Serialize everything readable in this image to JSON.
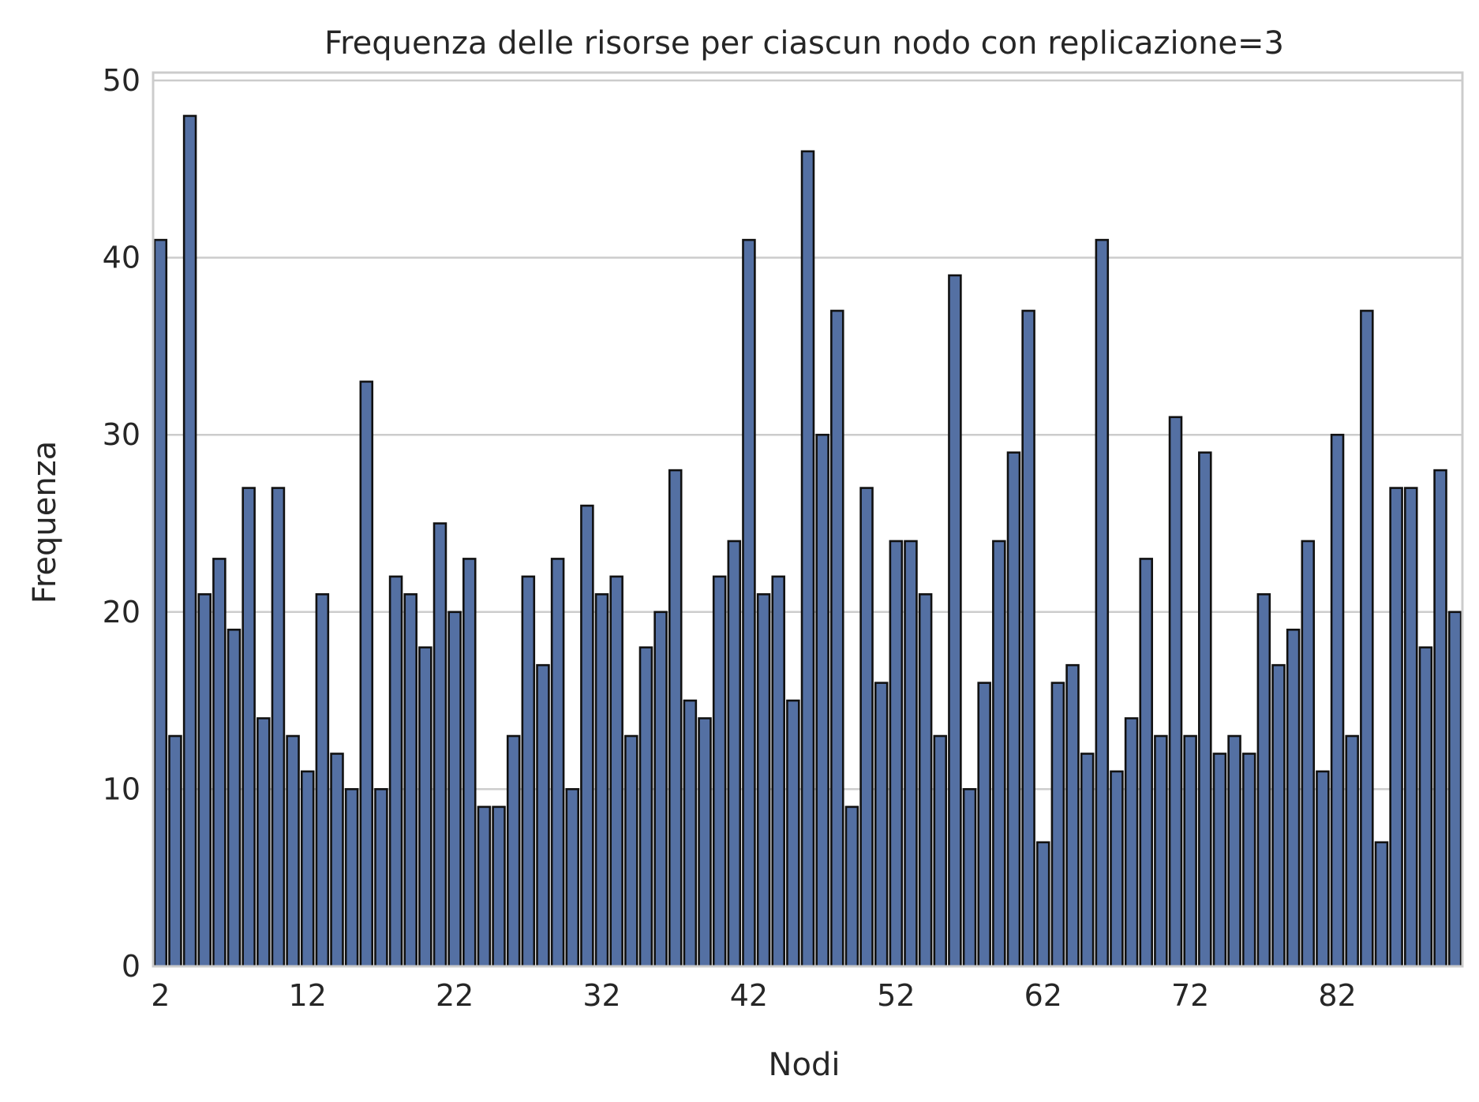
{
  "chart_data": {
    "type": "bar",
    "title": "Frequenza delle risorse per ciascun nodo con replicazione=3",
    "xlabel": "Nodi",
    "ylabel": "Frequenza",
    "categories": [
      2,
      3,
      4,
      5,
      6,
      7,
      8,
      9,
      10,
      11,
      12,
      13,
      14,
      15,
      16,
      17,
      18,
      19,
      20,
      21,
      22,
      23,
      24,
      25,
      26,
      27,
      28,
      29,
      30,
      31,
      32,
      33,
      34,
      35,
      36,
      37,
      38,
      39,
      40,
      41,
      42,
      43,
      44,
      45,
      46,
      47,
      48,
      49,
      50,
      51,
      52,
      53,
      54,
      55,
      56,
      57,
      58,
      59,
      60,
      61,
      62,
      63,
      64,
      65,
      66,
      67,
      68,
      69,
      70,
      71,
      72,
      73,
      74,
      75,
      76,
      77,
      78,
      79,
      80,
      81,
      82,
      83,
      84,
      85,
      86,
      87,
      88,
      89,
      90
    ],
    "values": [
      41,
      13,
      48,
      21,
      23,
      19,
      27,
      14,
      27,
      13,
      11,
      21,
      12,
      10,
      33,
      10,
      22,
      21,
      18,
      25,
      20,
      23,
      9,
      9,
      13,
      22,
      17,
      23,
      10,
      26,
      21,
      22,
      13,
      18,
      20,
      28,
      15,
      14,
      22,
      24,
      41,
      21,
      22,
      15,
      46,
      30,
      37,
      9,
      27,
      16,
      24,
      24,
      21,
      13,
      39,
      10,
      16,
      24,
      29,
      37,
      7,
      16,
      17,
      12,
      41,
      11,
      14,
      23,
      13,
      31,
      13,
      29,
      12,
      13,
      12,
      21,
      17,
      19,
      24,
      11,
      30,
      13,
      37,
      7,
      27,
      27,
      18,
      28,
      20
    ],
    "x_tick_labels": [
      "2",
      "12",
      "22",
      "32",
      "42",
      "52",
      "62",
      "72",
      "82"
    ],
    "y_tick_labels": [
      "0",
      "10",
      "20",
      "30",
      "40",
      "50"
    ],
    "ylim": [
      0,
      50
    ],
    "grid": "horizontal",
    "colors": {
      "bar": "#5470a3",
      "bar_edge": "#111111",
      "grid": "#cccccc",
      "text": "#262626"
    }
  }
}
